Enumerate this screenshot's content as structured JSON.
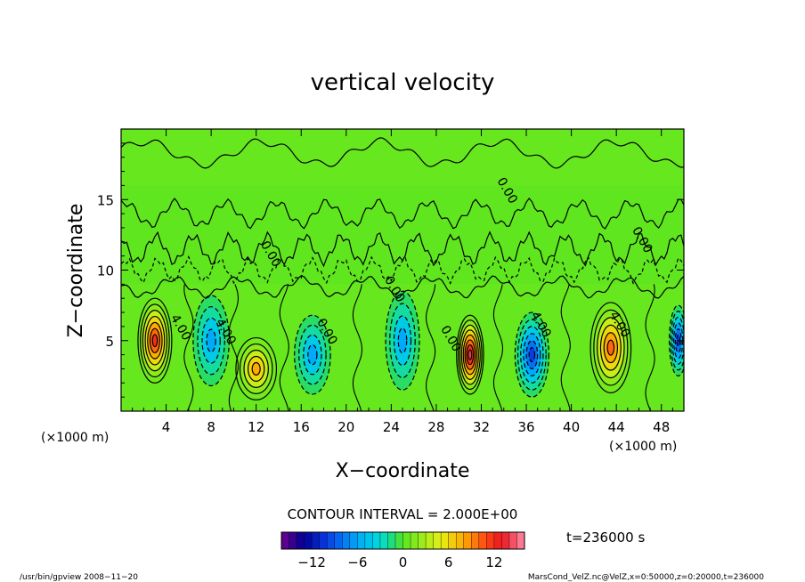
{
  "chart_data": {
    "type": "heatmap",
    "title": "vertical velocity",
    "xlabel": "X−coordinate",
    "ylabel": "Z−coordinate",
    "x_unit_label": "(×1000 m)",
    "xlim": [
      0,
      50
    ],
    "ylim": [
      0,
      20
    ],
    "x_ticks": [
      4,
      8,
      12,
      16,
      20,
      24,
      28,
      32,
      36,
      40,
      44,
      48
    ],
    "y_ticks": [
      5,
      10,
      15
    ],
    "contour_interval_label": "CONTOUR INTERVAL = 2.000E+00",
    "time_label": "t=236000  s",
    "colorbar": {
      "ticks": [
        -12,
        -6,
        0,
        6,
        12
      ],
      "range": [
        -16,
        16
      ]
    },
    "contour_labels": [
      {
        "text": "4.00",
        "x": 5.0,
        "z": 5.8
      },
      {
        "text": "4.00",
        "x": 9.0,
        "z": 5.5
      },
      {
        "text": "0.00",
        "x": 18.0,
        "z": 5.5
      },
      {
        "text": "0.00",
        "x": 24.0,
        "z": 8.5
      },
      {
        "text": "0.00",
        "x": 29.0,
        "z": 5.0
      },
      {
        "text": "4.00",
        "x": 37.0,
        "z": 6.0
      },
      {
        "text": "4.00",
        "x": 44.0,
        "z": 6.0
      },
      {
        "text": "0.00",
        "x": 13.0,
        "z": 11.0
      },
      {
        "text": "0.00",
        "x": 34.0,
        "z": 15.5
      },
      {
        "text": "0.00",
        "x": 46.0,
        "z": 12.0
      }
    ],
    "cells": [
      {
        "x": 3.0,
        "z": 5.0,
        "value": 12,
        "sx": 1.5,
        "sz": 3.0
      },
      {
        "x": 8.0,
        "z": 5.0,
        "value": -6,
        "sx": 1.6,
        "sz": 3.2
      },
      {
        "x": 12.0,
        "z": 3.0,
        "value": 8,
        "sx": 1.8,
        "sz": 2.2
      },
      {
        "x": 17.0,
        "z": 4.0,
        "value": -5,
        "sx": 1.6,
        "sz": 2.8
      },
      {
        "x": 25.0,
        "z": 5.0,
        "value": -6,
        "sx": 1.5,
        "sz": 3.5
      },
      {
        "x": 31.0,
        "z": 4.0,
        "value": 14,
        "sx": 1.2,
        "sz": 2.8
      },
      {
        "x": 36.5,
        "z": 4.0,
        "value": -10,
        "sx": 1.5,
        "sz": 3.0
      },
      {
        "x": 43.5,
        "z": 4.5,
        "value": 10,
        "sx": 1.8,
        "sz": 3.2
      },
      {
        "x": 49.5,
        "z": 5.0,
        "value": -10,
        "sx": 0.8,
        "sz": 2.5
      }
    ]
  },
  "footer": {
    "left": "/usr/bin/gpview   2008−11−20",
    "right": "MarsCond_VelZ.nc@VelZ,x=0:50000,z=0:20000,t=236000"
  }
}
